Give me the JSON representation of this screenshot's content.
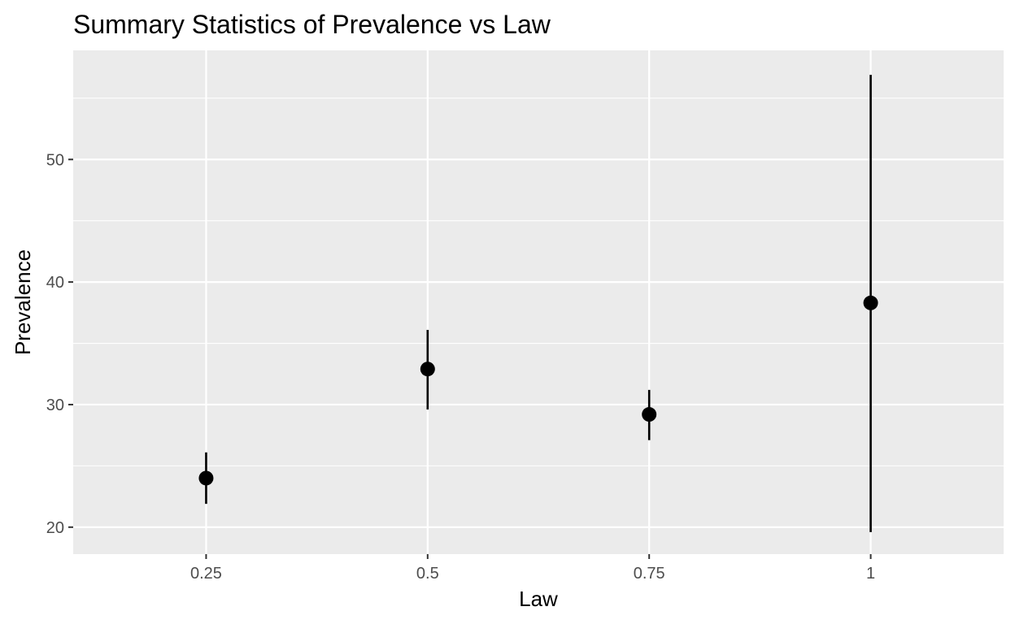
{
  "chart_data": {
    "type": "scatter",
    "title": "Summary Statistics of Prevalence vs Law",
    "xlabel": "Law",
    "ylabel": "Prevalence",
    "x_ticks": [
      "0.25",
      "0.5",
      "0.75",
      "1"
    ],
    "y_ticks": [
      20,
      30,
      40,
      50
    ],
    "xlim": [
      0.1,
      1.15
    ],
    "ylim": [
      17.8,
      58.9
    ],
    "grid": true,
    "legend": "none",
    "point_color": "#000000",
    "panel_color": "#ebebeb",
    "points": [
      {
        "x": 0.25,
        "y": 24.0,
        "ymin": 21.9,
        "ymax": 26.1
      },
      {
        "x": 0.5,
        "y": 32.9,
        "ymin": 29.6,
        "ymax": 36.1
      },
      {
        "x": 0.75,
        "y": 29.2,
        "ymin": 27.1,
        "ymax": 31.2
      },
      {
        "x": 1.0,
        "y": 38.3,
        "ymin": 19.6,
        "ymax": 56.9
      }
    ]
  }
}
